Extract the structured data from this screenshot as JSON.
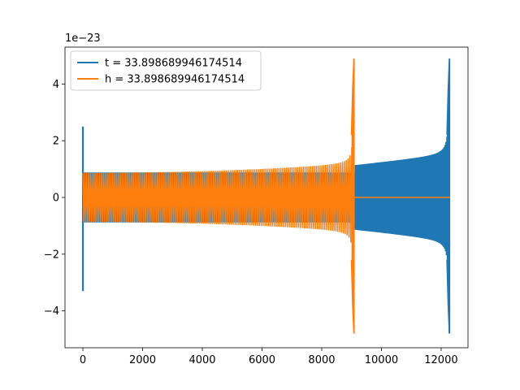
{
  "chart_data": {
    "type": "line",
    "title": "",
    "xlabel": "",
    "ylabel": "",
    "y_offset_label": "1e−23",
    "xlim": [
      -600,
      12900
    ],
    "ylim": [
      -5.3,
      5.3
    ],
    "x_ticks": [
      0,
      2000,
      4000,
      6000,
      8000,
      10000,
      12000
    ],
    "y_ticks": [
      -4,
      -2,
      0,
      2,
      4
    ],
    "x_tick_labels": [
      "0",
      "2000",
      "4000",
      "6000",
      "8000",
      "10000",
      "12000"
    ],
    "y_tick_labels": [
      "−4",
      "−2",
      "0",
      "2",
      "4"
    ],
    "grid": false,
    "legend_position": "upper-left",
    "series": [
      {
        "name": "t = 33.898689946174514",
        "color": "#1f77b4",
        "description_points": {
          "initial_spike": {
            "x": 0,
            "ymax": 2.5,
            "ymin": -3.3
          },
          "inspiral_start": {
            "x": 0,
            "amplitude": 0.85
          },
          "inspiral_mid": {
            "x": 9100,
            "amplitude": 1.15
          },
          "pre_merger": {
            "x": 12000,
            "amplitude": 2.1
          },
          "merger_peak": {
            "x": 12280,
            "ymax": 4.9,
            "ymin": -4.8
          },
          "end_x": 12300
        }
      },
      {
        "name": "h = 33.898689946174514",
        "color": "#ff7f0e",
        "description_points": {
          "inspiral_start": {
            "x": 0,
            "amplitude": 0.88
          },
          "inspiral_mid": {
            "x": 6000,
            "amplitude": 1.1
          },
          "pre_merger": {
            "x": 8800,
            "amplitude": 2.1
          },
          "merger_peak": {
            "x": 9080,
            "ymax": 4.9,
            "ymin": -4.8
          },
          "flat_after_merger": {
            "x_start": 9100,
            "x_end": 12300,
            "value": 0
          }
        }
      }
    ]
  }
}
